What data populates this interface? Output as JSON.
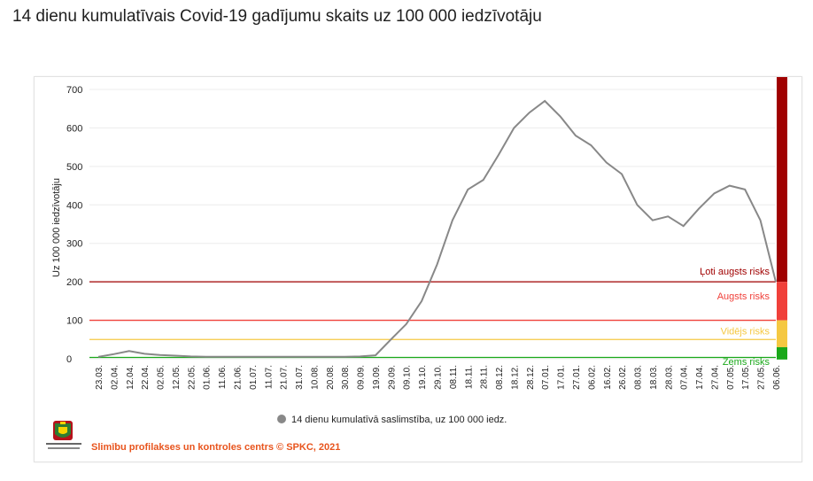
{
  "header": {
    "title": "14 dienu kumulatīvais Covid-19 gadījumu skaits uz 100 000 iedzīvotāju"
  },
  "footer": {
    "source": "Slimību profilakses un kontroles centrs © SPKC, 2021",
    "logo_text": "Slimību profilakses un kontroles centrs"
  },
  "colors": {
    "series": "#888888",
    "very_high": "#a00000",
    "high": "#f0403a",
    "medium": "#f5c842",
    "low": "#1aa81a"
  },
  "chart_data": {
    "type": "line",
    "ylabel": "Uz 100 000 iedzīvotāju",
    "ylim": [
      0,
      700
    ],
    "yticks": [
      0,
      100,
      200,
      300,
      400,
      500,
      600,
      700
    ],
    "grid": true,
    "legend": {
      "position": "bottom",
      "entries": [
        "14 dienu kumulatīvā saslimstība, uz 100 000 iedz."
      ]
    },
    "categories": [
      "23.03.",
      "02.04.",
      "12.04.",
      "22.04.",
      "02.05.",
      "12.05.",
      "22.05.",
      "01.06.",
      "11.06.",
      "21.06.",
      "01.07.",
      "11.07.",
      "21.07.",
      "31.07.",
      "10.08.",
      "20.08.",
      "30.08.",
      "09.09.",
      "19.09.",
      "29.09.",
      "09.10.",
      "19.10.",
      "29.10.",
      "08.11.",
      "18.11.",
      "28.11.",
      "08.12.",
      "18.12.",
      "28.12.",
      "07.01.",
      "17.01.",
      "27.01.",
      "06.02.",
      "16.02.",
      "26.02.",
      "08.03.",
      "18.03.",
      "28.03.",
      "07.04.",
      "17.04.",
      "27.04.",
      "07.05.",
      "17.05.",
      "27.05.",
      "06.06."
    ],
    "series": [
      {
        "name": "14 dienu kumulatīvā saslimstība, uz 100 000 iedz.",
        "values": [
          5,
          12,
          20,
          13,
          10,
          8,
          6,
          5,
          5,
          5,
          5,
          5,
          5,
          5,
          5,
          5,
          5,
          6,
          9,
          50,
          90,
          150,
          245,
          360,
          440,
          465,
          530,
          600,
          640,
          670,
          630,
          580,
          555,
          510,
          480,
          400,
          360,
          370,
          345,
          390,
          430,
          450,
          440,
          360,
          200
        ]
      }
    ],
    "thresholds": [
      {
        "label": "Ļoti augsts risks",
        "value": 200,
        "color": "#a00000"
      },
      {
        "label": "Augsts risks",
        "value": 100,
        "color": "#f0403a"
      },
      {
        "label": "Vidējs risks",
        "value": 50,
        "color": "#f5c842"
      },
      {
        "label": "Zems risks",
        "value": 0,
        "color": "#1aa81a"
      }
    ]
  }
}
